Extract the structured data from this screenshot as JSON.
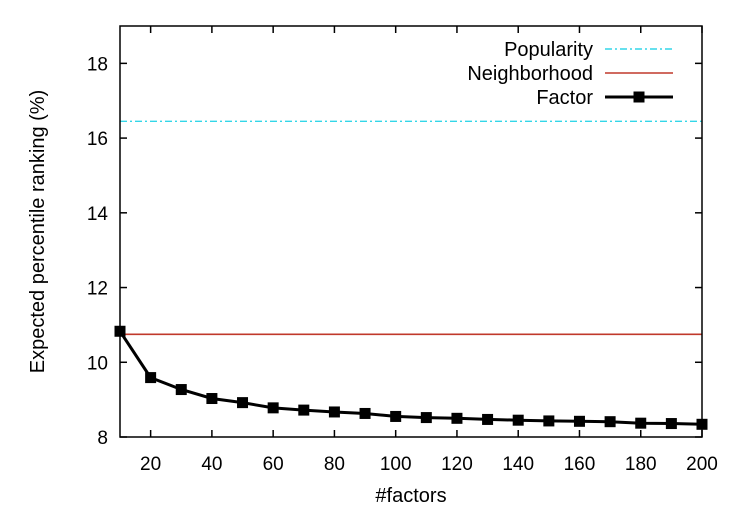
{
  "chart_data": {
    "type": "line",
    "title": "",
    "xlabel": "#factors",
    "ylabel": "Expected percentile ranking (%)",
    "xlim": [
      10,
      200
    ],
    "ylim": [
      8,
      19
    ],
    "xticks": [
      20,
      40,
      60,
      80,
      100,
      120,
      140,
      160,
      180,
      200
    ],
    "yticks": [
      8,
      10,
      12,
      14,
      16,
      18
    ],
    "legend_position": "top-right",
    "series": [
      {
        "name": "Popularity",
        "style": "dash-dot",
        "color": "#33d6e8",
        "x": [
          10,
          200
        ],
        "values": [
          16.45,
          16.45
        ]
      },
      {
        "name": "Neighborhood",
        "style": "solid",
        "color": "#c0392b",
        "x": [
          10,
          200
        ],
        "values": [
          10.75,
          10.75
        ]
      },
      {
        "name": "Factor",
        "style": "solid-square-markers",
        "color": "#000000",
        "x": [
          10,
          20,
          30,
          40,
          50,
          60,
          70,
          80,
          90,
          100,
          110,
          120,
          130,
          140,
          150,
          160,
          170,
          180,
          190,
          200
        ],
        "values": [
          10.83,
          9.59,
          9.27,
          9.03,
          8.92,
          8.78,
          8.72,
          8.67,
          8.63,
          8.55,
          8.52,
          8.5,
          8.47,
          8.45,
          8.43,
          8.42,
          8.41,
          8.37,
          8.36,
          8.34
        ]
      }
    ]
  }
}
